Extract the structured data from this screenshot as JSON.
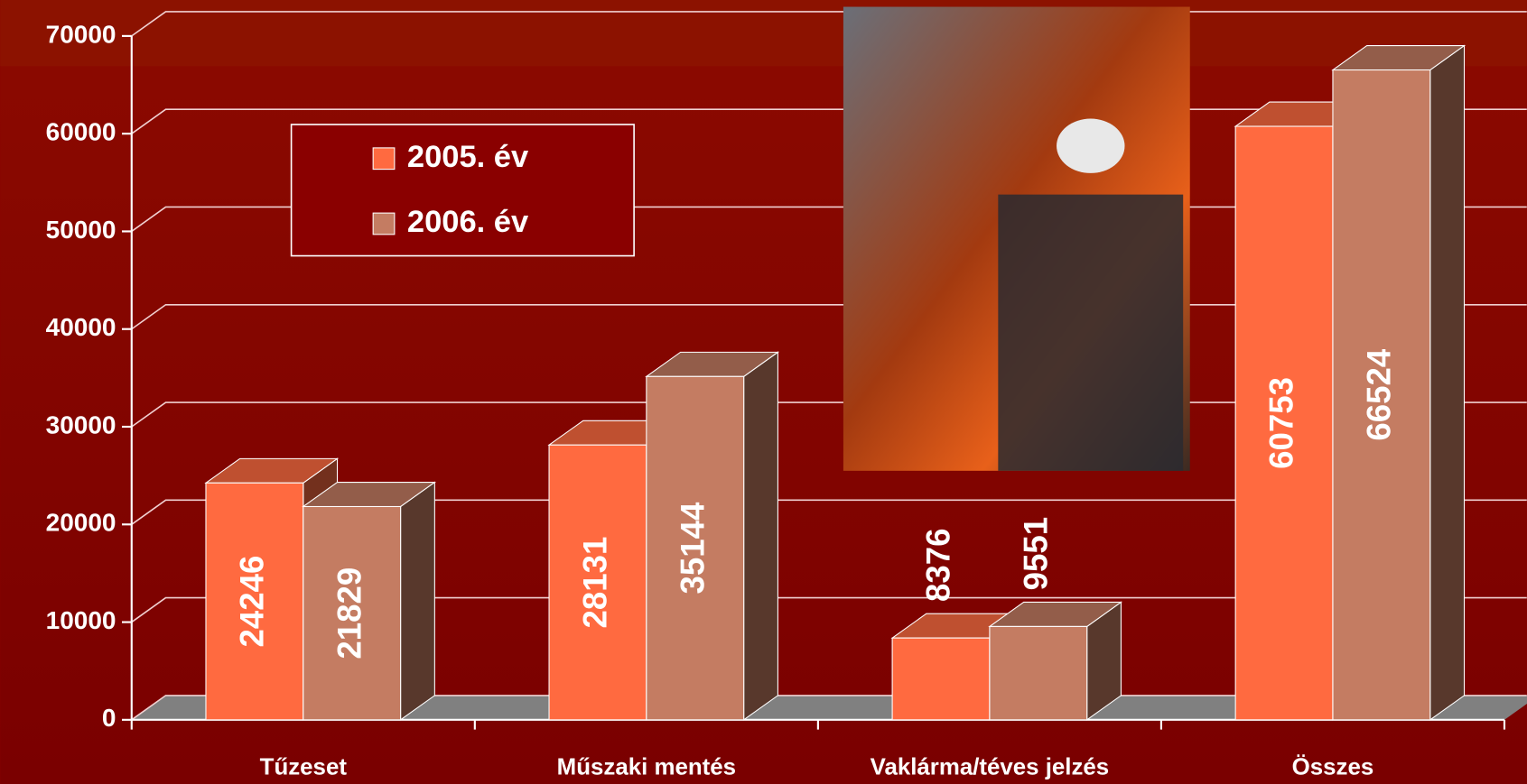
{
  "chart_data": {
    "type": "bar3d",
    "categories": [
      "Tűzeset",
      "Műszaki mentés",
      "Vaklárma/téves jelzés",
      "Összes"
    ],
    "series": [
      {
        "name": "2005. év",
        "color": "#ff6a40",
        "values": [
          24246,
          28131,
          8376,
          60753
        ]
      },
      {
        "name": "2006. év",
        "color": "#c47c62",
        "values": [
          21829,
          35144,
          9551,
          66524
        ]
      }
    ],
    "ylim": [
      0,
      70000
    ],
    "yticks": [
      0,
      10000,
      20000,
      30000,
      40000,
      50000,
      60000,
      70000
    ],
    "grid": true
  }
}
